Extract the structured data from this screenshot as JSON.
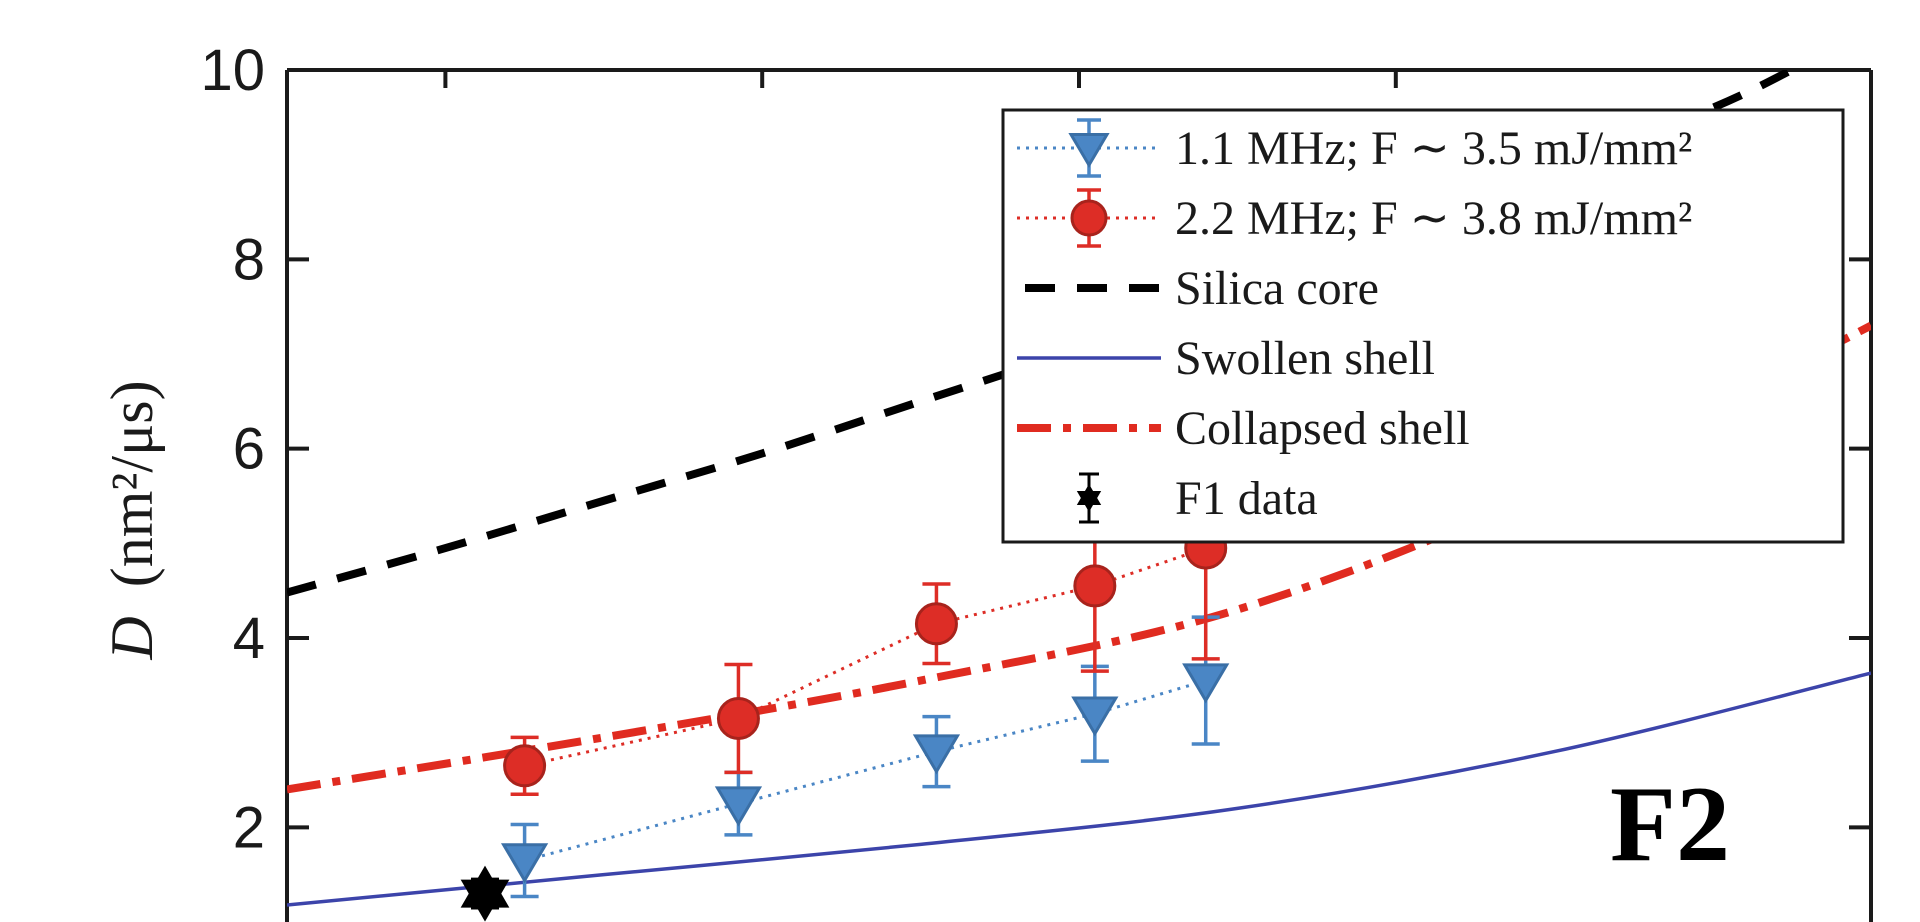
{
  "chart_data": {
    "type": "line",
    "title": "",
    "panel_label": "F2",
    "ylabel": {
      "symbol": "D",
      "units": "(nm²/μs)"
    },
    "xlabel": "",
    "ylim": [
      1,
      10
    ],
    "yticks": [
      2,
      4,
      6,
      8,
      10
    ],
    "ytick_labels": [
      "2",
      "4",
      "6",
      "8",
      "10"
    ],
    "grid": false,
    "legend_position": "top-right",
    "series": [
      {
        "name": "1.1 MHz; F ∼ 3.5 mJ/mm²",
        "color": "#4a86c5",
        "style": "dotted-with-triangle-markers-and-errorbars",
        "points": [
          {
            "x": 0.15,
            "y": 1.65,
            "err": 0.38
          },
          {
            "x": 0.285,
            "y": 2.25,
            "err": 0.33
          },
          {
            "x": 0.41,
            "y": 2.8,
            "err": 0.37
          },
          {
            "x": 0.51,
            "y": 3.2,
            "err": 0.5
          },
          {
            "x": 0.58,
            "y": 3.55,
            "err": 0.67
          }
        ]
      },
      {
        "name": "2.2 MHz; F ∼ 3.8 mJ/mm²",
        "color": "#dd2d26",
        "style": "dotted-with-circle-markers-and-errorbars",
        "points": [
          {
            "x": 0.15,
            "y": 2.65,
            "err": 0.3
          },
          {
            "x": 0.285,
            "y": 3.15,
            "err": 0.57
          },
          {
            "x": 0.41,
            "y": 4.15,
            "err": 0.42
          },
          {
            "x": 0.51,
            "y": 4.55,
            "err": 0.9
          },
          {
            "x": 0.58,
            "y": 4.95,
            "err": 1.17
          }
        ]
      },
      {
        "name": "Silica core",
        "color": "#000000",
        "style": "dashed",
        "x": [
          0,
          0.1,
          0.2,
          0.3,
          0.4,
          0.5,
          0.6,
          0.7,
          0.8,
          0.9,
          0.95
        ],
        "y": [
          4.48,
          4.95,
          5.45,
          5.95,
          6.5,
          7.05,
          7.65,
          8.3,
          8.95,
          9.6,
          10.0
        ]
      },
      {
        "name": "Swollen shell",
        "color": "#3c44aa",
        "style": "solid",
        "x": [
          0,
          0.2,
          0.4,
          0.6,
          0.8,
          1.0
        ],
        "y": [
          1.18,
          1.5,
          1.82,
          2.2,
          2.8,
          3.63
        ]
      },
      {
        "name": "Collapsed shell",
        "color": "#e02b20",
        "style": "dash-dot",
        "x": [
          0,
          0.2,
          0.4,
          0.6,
          0.8,
          1.0
        ],
        "y": [
          2.4,
          2.95,
          3.55,
          4.3,
          5.6,
          7.3
        ]
      },
      {
        "name": "F1 data",
        "color": "#000000",
        "style": "star-marker-with-errorbar",
        "points": [
          {
            "x": 0.125,
            "y": 1.3,
            "err": 0.15
          }
        ]
      }
    ]
  }
}
